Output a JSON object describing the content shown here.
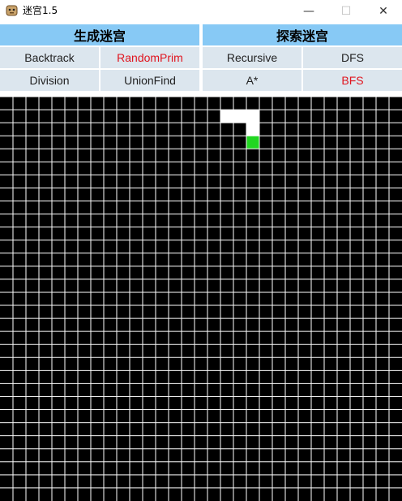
{
  "window": {
    "title": "迷宫1.5",
    "icon": "app-icon",
    "controls": {
      "minimize": "—",
      "maximize": "☐",
      "close": "✕"
    }
  },
  "generate": {
    "heading": "生成迷宫",
    "buttons": [
      {
        "label": "Backtrack",
        "active": false
      },
      {
        "label": "RandomPrim",
        "active": true
      },
      {
        "label": "Division",
        "active": false
      },
      {
        "label": "UnionFind",
        "active": false
      }
    ]
  },
  "explore": {
    "heading": "探索迷宫",
    "buttons": [
      {
        "label": "Recursive",
        "active": false
      },
      {
        "label": "DFS",
        "active": false
      },
      {
        "label": "A*",
        "active": false
      },
      {
        "label": "BFS",
        "active": true
      }
    ]
  },
  "maze": {
    "columns": 31,
    "rows": 31,
    "wall_color": "#000000",
    "open_color": "#ffffff",
    "grid_color": "#ffffff",
    "marker_color": "#22d622",
    "open_cells": [
      [
        17,
        1
      ],
      [
        18,
        1
      ],
      [
        19,
        1
      ],
      [
        19,
        2
      ]
    ],
    "marker_cell": [
      19,
      3
    ]
  }
}
